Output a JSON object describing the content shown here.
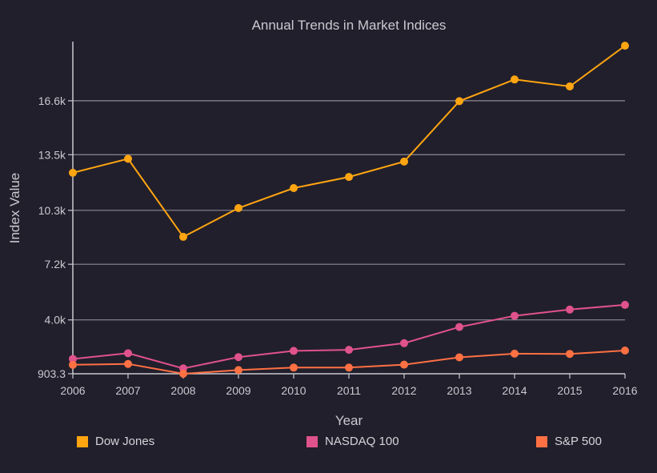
{
  "chart_data": {
    "type": "line",
    "title": "Annual Trends in Market Indices",
    "xlabel": "Year",
    "ylabel": "Index Value",
    "x": [
      2006,
      2007,
      2008,
      2009,
      2010,
      2011,
      2012,
      2013,
      2014,
      2015,
      2016
    ],
    "x_tick_labels": [
      "2006",
      "2007",
      "2008",
      "2009",
      "2010",
      "2011",
      "2012",
      "2013",
      "2014",
      "2015",
      "2016"
    ],
    "ylim": [
      903.3,
      20000
    ],
    "y_ticks": [
      903.3,
      4000,
      7200,
      10300,
      13500,
      16600
    ],
    "y_tick_labels": [
      "903.3",
      "4.0k",
      "7.2k",
      "10.3k",
      "13.5k",
      "16.6k"
    ],
    "grid": true,
    "legend_position": "bottom",
    "series": [
      {
        "name": "Dow Jones",
        "color": "#ffa511",
        "values": [
          12460,
          13265,
          8776,
          10428,
          11578,
          12218,
          13104,
          16577,
          17823,
          17425,
          19763
        ]
      },
      {
        "name": "NASDAQ 100",
        "color": "#e0528b",
        "values": [
          1756,
          2084,
          1212,
          1860,
          2218,
          2278,
          2661,
          3592,
          4236,
          4594,
          4864
        ]
      },
      {
        "name": "S&P 500",
        "color": "#ff7043",
        "values": [
          1418,
          1468,
          903,
          1115,
          1258,
          1258,
          1426,
          1848,
          2059,
          2044,
          2239
        ]
      }
    ]
  }
}
